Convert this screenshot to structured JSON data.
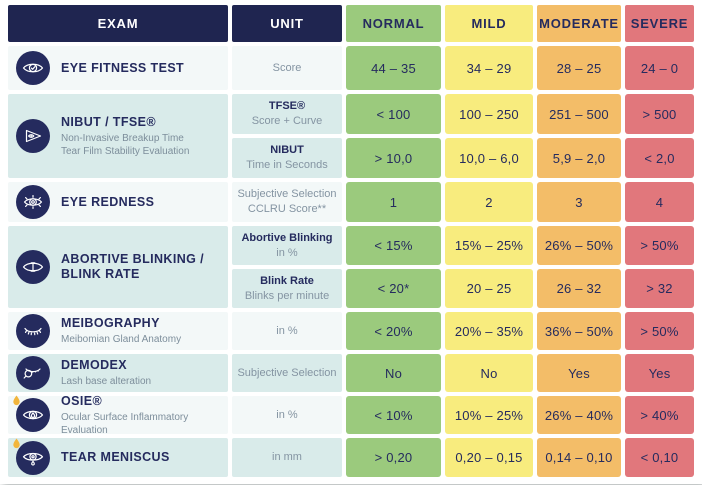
{
  "table": {
    "header": {
      "exam_label": "EXAM",
      "unit_label": "UNIT",
      "severity_columns": [
        "NORMAL",
        "MILD",
        "MODERATE",
        "SEVERE"
      ]
    },
    "colors": {
      "header_navy": "#1F2550",
      "text_navy": "#252B5E",
      "normal_green": "#9BCA7D",
      "mild_yellow": "#F8EC7E",
      "moderate_orange": "#F3BD68",
      "severe_red": "#E1777C",
      "row_light": "#F3F8F8",
      "row_teal": "#D9EBEA",
      "drop_yellow": "#F2B53C"
    },
    "rows": [
      {
        "icon": "eye-check-icon",
        "title": "EYE FITNESS TEST",
        "subtitle": "",
        "subrows": [
          {
            "unit_title": "",
            "unit_text": "Score",
            "values": [
              "44 – 35",
              "34 – 29",
              "28 – 25",
              "24 – 0"
            ]
          }
        ]
      },
      {
        "icon": "eye-triangle-icon",
        "title": "NIBUT / TFSE®",
        "subtitle": "Non-Invasive Breakup Time\nTear Film Stability Evaluation",
        "subrows": [
          {
            "unit_title": "TFSE®",
            "unit_text": "Score + Curve",
            "values": [
              "< 100",
              "100 – 250",
              "251 – 500",
              "> 500"
            ]
          },
          {
            "unit_title": "NIBUT",
            "unit_text": "Time in Seconds",
            "values": [
              "> 10,0",
              "10,0 – 6,0",
              "5,9 – 2,0",
              "< 2,0"
            ]
          }
        ]
      },
      {
        "icon": "eye-redness-icon",
        "title": "EYE REDNESS",
        "subtitle": "",
        "subrows": [
          {
            "unit_title": "",
            "unit_text": "Subjective Selection\nCCLRU Score**",
            "values": [
              "1",
              "2",
              "3",
              "4"
            ]
          }
        ]
      },
      {
        "icon": "eye-blink-icon",
        "title": "ABORTIVE BLINKING /\nBLINK RATE",
        "subtitle": "",
        "subrows": [
          {
            "unit_title": "Abortive Blinking",
            "unit_text": "in %",
            "values": [
              "< 15%",
              "15% – 25%",
              "26% – 50%",
              "> 50%"
            ]
          },
          {
            "unit_title": "Blink Rate",
            "unit_text": "Blinks per minute",
            "values": [
              "< 20*",
              "20 – 25",
              "26 – 32",
              "> 32"
            ]
          }
        ]
      },
      {
        "icon": "eyelash-icon",
        "title": "MEIBOGRAPHY",
        "subtitle": "Meibomian Gland Anatomy",
        "subrows": [
          {
            "unit_title": "",
            "unit_text": "in %",
            "values": [
              "< 20%",
              "20% – 35%",
              "36% – 50%",
              "> 50%"
            ]
          }
        ]
      },
      {
        "icon": "magnifier-lash-icon",
        "title": "DEMODEX",
        "subtitle": "Lash base alteration",
        "subrows": [
          {
            "unit_title": "",
            "unit_text": "Subjective Selection",
            "values": [
              "No",
              "No",
              "Yes",
              "Yes"
            ]
          }
        ]
      },
      {
        "icon": "eye-inflammation-drop-icon",
        "title": "OSIE®",
        "subtitle": "Ocular Surface Inflammatory Evaluation",
        "subrows": [
          {
            "unit_title": "",
            "unit_text": "in %",
            "values": [
              "< 10%",
              "10% – 25%",
              "26% – 40%",
              "> 40%"
            ]
          }
        ]
      },
      {
        "icon": "tear-meniscus-eye-icon",
        "title": "TEAR MENISCUS",
        "subtitle": "",
        "subrows": [
          {
            "unit_title": "",
            "unit_text": "in mm",
            "values": [
              "> 0,20",
              "0,20 – 0,15",
              "0,14 – 0,10",
              "< 0,10"
            ]
          }
        ]
      }
    ]
  }
}
